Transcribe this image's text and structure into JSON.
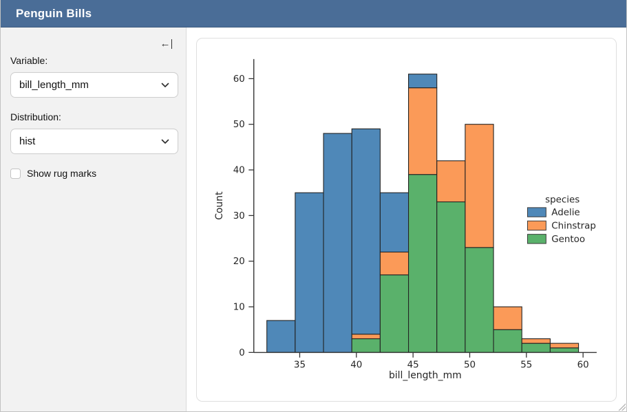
{
  "theme": {
    "header-bg": "#4a6d97",
    "header-fg": "#ffffff",
    "sidebar-bg": "#f2f2f2",
    "panel-border": "#d9d9d9",
    "card-border": "#dfdfdf"
  },
  "header": {
    "title": "Penguin Bills"
  },
  "sidebar": {
    "collapse_icon": "←",
    "variable": {
      "label": "Variable:",
      "value": "bill_length_mm"
    },
    "distribution": {
      "label": "Distribution:",
      "value": "hist"
    },
    "rug": {
      "label": "Show rug marks",
      "checked": false
    }
  },
  "chart_data": {
    "type": "bar",
    "subtype": "stacked-histogram",
    "title": "",
    "xlabel": "bill_length_mm",
    "ylabel": "Count",
    "bin_edges": [
      32.1,
      34.6,
      37.1,
      39.6,
      42.1,
      44.6,
      47.1,
      49.6,
      52.1,
      54.6,
      57.1,
      59.6
    ],
    "series": [
      {
        "name": "Adelie",
        "color": "#4f88b8",
        "values": [
          7,
          35,
          48,
          45,
          13,
          3,
          0,
          0,
          0,
          0,
          0
        ]
      },
      {
        "name": "Chinstrap",
        "color": "#fb9a58",
        "values": [
          0,
          0,
          0,
          1,
          5,
          19,
          9,
          27,
          5,
          1,
          1
        ]
      },
      {
        "name": "Gentoo",
        "color": "#5ab16b",
        "values": [
          0,
          0,
          0,
          3,
          17,
          39,
          33,
          23,
          5,
          2,
          1
        ]
      }
    ],
    "stack_bottom_to_top": [
      "Gentoo",
      "Chinstrap",
      "Adelie"
    ],
    "bin_totals": [
      7,
      35,
      48,
      49,
      35,
      61,
      42,
      50,
      10,
      3,
      2
    ],
    "x_ticks": [
      35,
      40,
      45,
      50,
      55,
      60
    ],
    "y_ticks": [
      0,
      10,
      20,
      30,
      40,
      50,
      60
    ],
    "xlim": [
      30.95,
      61.2
    ],
    "ylim": [
      0,
      64.3
    ],
    "grid": false,
    "bar_edge_color": "#222222",
    "axis_color": "#333333",
    "legend": {
      "title": "species",
      "entries": [
        "Adelie",
        "Chinstrap",
        "Gentoo"
      ],
      "position": "right",
      "frame": false
    }
  }
}
